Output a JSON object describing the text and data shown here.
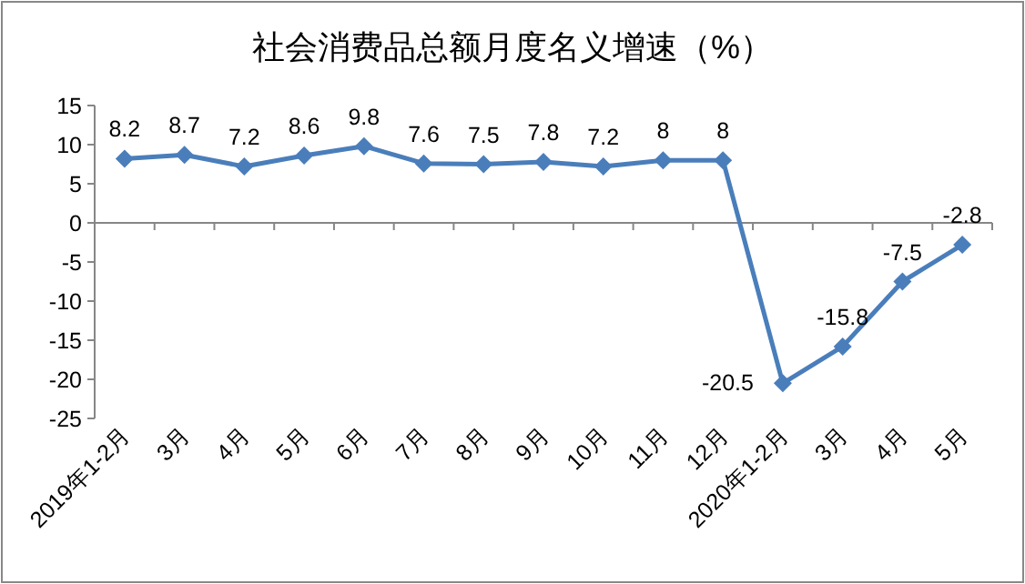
{
  "chart_data": {
    "type": "line",
    "title": "社会消费品总额月度名义增速（%）",
    "categories": [
      "2019年1-2月",
      "3月",
      "4月",
      "5月",
      "6月",
      "7月",
      "8月",
      "9月",
      "10月",
      "11月",
      "12月",
      "2020年1-2月",
      "3月",
      "4月",
      "5月"
    ],
    "series": [
      {
        "color": "#4a7ebb",
        "values": [
          8.2,
          8.7,
          7.2,
          8.6,
          9.8,
          7.6,
          7.5,
          7.8,
          7.2,
          8,
          8,
          -20.5,
          -15.8,
          -7.5,
          -2.8
        ]
      }
    ],
    "ylim": [
      -25,
      15
    ],
    "yticks": [
      -25,
      -20,
      -15,
      -10,
      -5,
      0,
      5,
      10,
      15
    ],
    "marker": "diamond",
    "line_style": "solid",
    "data_labels": true
  }
}
